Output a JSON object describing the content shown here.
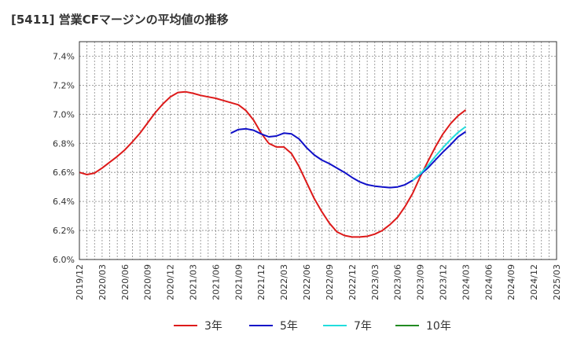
{
  "title": "[5411]  営業CFマージンの平均値の推移",
  "chart_data": {
    "type": "line",
    "title": "[5411]  営業CFマージンの平均値の推移",
    "xlabel": "",
    "ylabel": "",
    "ylim": [
      6.0,
      7.5
    ],
    "grid": true,
    "legend_position": "bottom",
    "y_ticks": [
      "6.0%",
      "6.2%",
      "6.4%",
      "6.6%",
      "6.8%",
      "7.0%",
      "7.2%",
      "7.4%"
    ],
    "y_tick_values": [
      6.0,
      6.2,
      6.4,
      6.6,
      6.8,
      7.0,
      7.2,
      7.4
    ],
    "x_ticks": [
      "2019/12",
      "2020/03",
      "2020/06",
      "2020/09",
      "2020/12",
      "2021/03",
      "2021/06",
      "2021/09",
      "2021/12",
      "2022/03",
      "2022/06",
      "2022/09",
      "2022/12",
      "2023/03",
      "2023/06",
      "2023/09",
      "2023/12",
      "2024/03",
      "2024/06",
      "2024/09",
      "2024/12",
      "2025/03"
    ],
    "series": [
      {
        "name": "3年",
        "color": "#dd1a1a",
        "points": [
          [
            "2019/12",
            6.6
          ],
          [
            "2020/01",
            6.585
          ],
          [
            "2020/02",
            6.595
          ],
          [
            "2020/03",
            6.63
          ],
          [
            "2020/04",
            6.67
          ],
          [
            "2020/05",
            6.71
          ],
          [
            "2020/06",
            6.755
          ],
          [
            "2020/07",
            6.81
          ],
          [
            "2020/08",
            6.87
          ],
          [
            "2020/09",
            6.94
          ],
          [
            "2020/10",
            7.01
          ],
          [
            "2020/11",
            7.07
          ],
          [
            "2020/12",
            7.12
          ],
          [
            "2021/01",
            7.15
          ],
          [
            "2021/02",
            7.155
          ],
          [
            "2021/03",
            7.145
          ],
          [
            "2021/04",
            7.13
          ],
          [
            "2021/05",
            7.12
          ],
          [
            "2021/06",
            7.11
          ],
          [
            "2021/07",
            7.095
          ],
          [
            "2021/08",
            7.08
          ],
          [
            "2021/09",
            7.065
          ],
          [
            "2021/10",
            7.025
          ],
          [
            "2021/11",
            6.96
          ],
          [
            "2021/12",
            6.87
          ],
          [
            "2022/01",
            6.8
          ],
          [
            "2022/02",
            6.775
          ],
          [
            "2022/03",
            6.775
          ],
          [
            "2022/04",
            6.73
          ],
          [
            "2022/05",
            6.64
          ],
          [
            "2022/06",
            6.53
          ],
          [
            "2022/07",
            6.42
          ],
          [
            "2022/08",
            6.33
          ],
          [
            "2022/09",
            6.25
          ],
          [
            "2022/10",
            6.19
          ],
          [
            "2022/11",
            6.165
          ],
          [
            "2022/12",
            6.155
          ],
          [
            "2023/01",
            6.155
          ],
          [
            "2023/02",
            6.16
          ],
          [
            "2023/03",
            6.175
          ],
          [
            "2023/04",
            6.2
          ],
          [
            "2023/05",
            6.24
          ],
          [
            "2023/06",
            6.29
          ],
          [
            "2023/07",
            6.365
          ],
          [
            "2023/08",
            6.455
          ],
          [
            "2023/09",
            6.57
          ],
          [
            "2023/10",
            6.675
          ],
          [
            "2023/11",
            6.775
          ],
          [
            "2023/12",
            6.865
          ],
          [
            "2024/01",
            6.935
          ],
          [
            "2024/02",
            6.99
          ],
          [
            "2024/03",
            7.03
          ]
        ]
      },
      {
        "name": "5年",
        "color": "#1010c8",
        "points": [
          [
            "2021/08",
            6.87
          ],
          [
            "2021/09",
            6.895
          ],
          [
            "2021/10",
            6.9
          ],
          [
            "2021/11",
            6.89
          ],
          [
            "2021/12",
            6.865
          ],
          [
            "2022/01",
            6.845
          ],
          [
            "2022/02",
            6.85
          ],
          [
            "2022/03",
            6.87
          ],
          [
            "2022/04",
            6.865
          ],
          [
            "2022/05",
            6.83
          ],
          [
            "2022/06",
            6.77
          ],
          [
            "2022/07",
            6.72
          ],
          [
            "2022/08",
            6.685
          ],
          [
            "2022/09",
            6.66
          ],
          [
            "2022/10",
            6.63
          ],
          [
            "2022/11",
            6.6
          ],
          [
            "2022/12",
            6.565
          ],
          [
            "2023/01",
            6.535
          ],
          [
            "2023/02",
            6.515
          ],
          [
            "2023/03",
            6.505
          ],
          [
            "2023/04",
            6.5
          ],
          [
            "2023/05",
            6.495
          ],
          [
            "2023/06",
            6.5
          ],
          [
            "2023/07",
            6.515
          ],
          [
            "2023/08",
            6.545
          ],
          [
            "2023/09",
            6.585
          ],
          [
            "2023/10",
            6.63
          ],
          [
            "2023/11",
            6.685
          ],
          [
            "2023/12",
            6.74
          ],
          [
            "2024/01",
            6.79
          ],
          [
            "2024/02",
            6.845
          ],
          [
            "2024/03",
            6.88
          ]
        ]
      },
      {
        "name": "7年",
        "color": "#22dddd",
        "points": [
          [
            "2023/08",
            6.545
          ],
          [
            "2023/09",
            6.59
          ],
          [
            "2023/10",
            6.645
          ],
          [
            "2023/11",
            6.71
          ],
          [
            "2023/12",
            6.77
          ],
          [
            "2024/01",
            6.825
          ],
          [
            "2024/02",
            6.875
          ],
          [
            "2024/03",
            6.915
          ]
        ]
      },
      {
        "name": "10年",
        "color": "#228b22",
        "points": []
      }
    ]
  }
}
